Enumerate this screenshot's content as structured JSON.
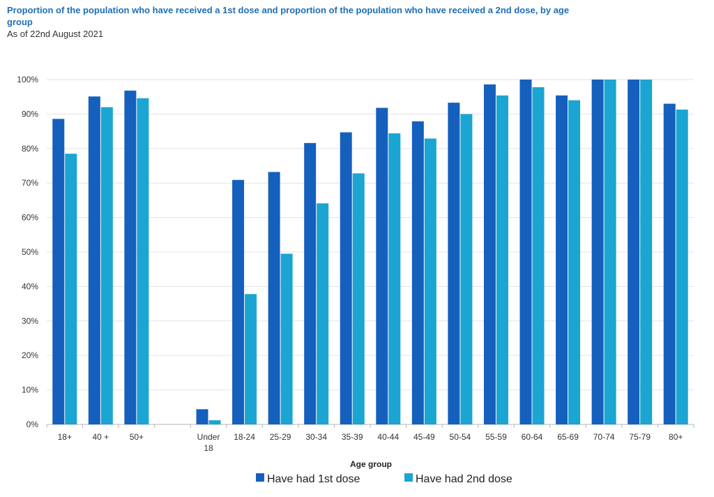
{
  "title": "Proportion of the population who have received a 1st dose and proportion of the population who have received a 2nd dose, by age group",
  "subtitle": "As of 22nd August 2021",
  "chart_data": {
    "type": "bar",
    "xlabel": "Age group",
    "ylabel": "",
    "ylim": [
      0,
      100
    ],
    "yticks": [
      "0%",
      "10%",
      "20%",
      "30%",
      "40%",
      "50%",
      "60%",
      "70%",
      "80%",
      "90%",
      "100%"
    ],
    "grid": true,
    "legend_position": "bottom",
    "categories": [
      "18+",
      "40 +",
      "50+",
      "",
      "Under 18",
      "18-24",
      "25-29",
      "30-34",
      "35-39",
      "40-44",
      "45-49",
      "50-54",
      "55-59",
      "60-64",
      "65-69",
      "70-74",
      "75-79",
      "80+"
    ],
    "series": [
      {
        "name": "Have had 1st dose",
        "color": "#1560bd",
        "values": [
          88.6,
          95.1,
          96.8,
          null,
          4.4,
          70.9,
          73.2,
          81.6,
          84.7,
          91.8,
          87.9,
          93.3,
          98.6,
          100,
          95.4,
          100,
          100,
          93.0
        ]
      },
      {
        "name": "Have had 2nd dose",
        "color": "#1aa5d2",
        "values": [
          78.5,
          92.0,
          94.6,
          null,
          1.2,
          37.8,
          49.5,
          64.1,
          72.8,
          84.4,
          82.9,
          90.0,
          95.4,
          97.8,
          94.0,
          100,
          100,
          91.3
        ]
      }
    ]
  }
}
